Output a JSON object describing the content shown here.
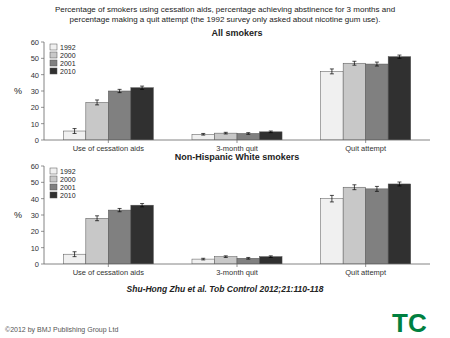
{
  "title": "Percentage of smokers using cessation aids, percentage achieving abstinence for 3 months and",
  "subtitle": "percentage making a quit attempt (the 1992 survey only asked about nicotine gum use).",
  "annotations": [
    {
      "text": "Shu-Hong Zhu et al. Tob Control 2012;21:110-118"
    },
    {
      "text": "©2012 by BMJ Publishing Group Ltd"
    },
    {
      "text": "TC",
      "color": "#008040"
    }
  ],
  "chart_data": [
    {
      "type": "bar",
      "title": "All smokers",
      "categories": [
        "Use of cessation aids",
        "3-month quit",
        "Quit attempt"
      ],
      "series": [
        {
          "name": "1992",
          "color": "#f0f0f0",
          "values": [
            5.5,
            3.5,
            42.0
          ],
          "errors": [
            1.5,
            0.5,
            1.5
          ]
        },
        {
          "name": "2000",
          "color": "#c8c8c8",
          "values": [
            23.0,
            4.2,
            47.0
          ],
          "errors": [
            1.5,
            0.5,
            1.2
          ]
        },
        {
          "name": "2001",
          "color": "#808080",
          "values": [
            30.0,
            4.0,
            46.5
          ],
          "errors": [
            1.0,
            0.5,
            1.2
          ]
        },
        {
          "name": "2010",
          "color": "#303030",
          "values": [
            32.0,
            5.0,
            51.0
          ],
          "errors": [
            1.0,
            0.5,
            1.0
          ]
        }
      ],
      "ylabel": "%",
      "ylim": [
        0,
        60
      ],
      "yticks": [
        0,
        10,
        20,
        30,
        40,
        50,
        60
      ],
      "legend": "upper left",
      "grid": false
    },
    {
      "type": "bar",
      "title": "Non-Hispanic White smokers",
      "categories": [
        "Use of cessation aids",
        "3-month quit",
        "Quit attempt"
      ],
      "series": [
        {
          "name": "1992",
          "color": "#f0f0f0",
          "values": [
            6.0,
            3.0,
            40.0
          ],
          "errors": [
            1.5,
            0.5,
            2.0
          ]
        },
        {
          "name": "2000",
          "color": "#c8c8c8",
          "values": [
            28.0,
            4.5,
            47.0
          ],
          "errors": [
            1.5,
            0.5,
            1.5
          ]
        },
        {
          "name": "2001",
          "color": "#808080",
          "values": [
            33.0,
            3.5,
            46.0
          ],
          "errors": [
            1.0,
            0.5,
            1.5
          ]
        },
        {
          "name": "2010",
          "color": "#303030",
          "values": [
            36.0,
            4.5,
            49.0
          ],
          "errors": [
            1.0,
            0.5,
            1.2
          ]
        }
      ],
      "ylabel": "%",
      "ylim": [
        0,
        60
      ],
      "yticks": [
        0,
        10,
        20,
        30,
        40,
        50,
        60
      ],
      "legend": "upper left",
      "grid": false
    }
  ]
}
